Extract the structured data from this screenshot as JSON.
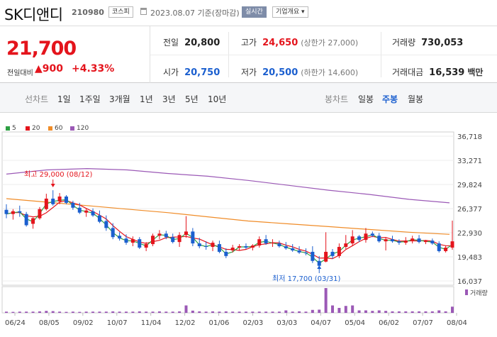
{
  "header": {
    "name": "SK디앤디",
    "code": "210980",
    "market": "코스피",
    "date": "2023.08.07 기준(장마감)",
    "realtime": "실시간",
    "company_info": "기업개요 ▾"
  },
  "quote": {
    "price": "21,700",
    "change_label": "전일대비",
    "change": "▲900",
    "change_pct": "+4.33%",
    "prev_close": {
      "label": "전일",
      "value": "20,800"
    },
    "open": {
      "label": "시가",
      "value": "20,750"
    },
    "high": {
      "label": "고가",
      "value": "24,650",
      "sub": "(상한가 27,000)"
    },
    "low": {
      "label": "저가",
      "value": "20,500",
      "sub": "(하한가 14,600)"
    },
    "volume": {
      "label": "거래량",
      "value": "730,053"
    },
    "turnover": {
      "label": "거래대금",
      "value": "16,539",
      "unit": "백만"
    }
  },
  "tabs": {
    "line_label": "선차트",
    "periods": [
      "1일",
      "1주일",
      "3개월",
      "1년",
      "3년",
      "5년",
      "10년"
    ],
    "candle_label": "봉차트",
    "candles": [
      "일봉",
      "주봉",
      "월봉"
    ],
    "active_candle": "주봉"
  },
  "legend": [
    {
      "label": "5",
      "color": "#2ea043"
    },
    {
      "label": "20",
      "color": "#e4141c"
    },
    {
      "label": "60",
      "color": "#f08c28"
    },
    {
      "label": "120",
      "color": "#9b59b6"
    }
  ],
  "chart_data": {
    "type": "candlestick",
    "y_ticks": [
      "36,718",
      "33,271",
      "29,824",
      "26,377",
      "22,930",
      "19,483",
      "16,037"
    ],
    "ylim": [
      16037,
      36718
    ],
    "x_ticks": [
      "06/24",
      "08/05",
      "09/02",
      "10/07",
      "11/04",
      "12/02",
      "01/06",
      "02/03",
      "03/03",
      "04/07",
      "05/04",
      "06/02",
      "07/07",
      "08/04"
    ],
    "annotations": {
      "high": "최고 29,000 (08/12)",
      "low": "최저 17,700 (03/31)"
    },
    "volume_label": "거래량",
    "candles": [
      [
        26200,
        27000,
        25000,
        25600
      ],
      [
        25600,
        26300,
        24800,
        26000
      ],
      [
        26000,
        26800,
        25200,
        25800
      ],
      [
        25600,
        25900,
        23800,
        24000
      ],
      [
        24200,
        25100,
        23500,
        25000
      ],
      [
        25000,
        26600,
        24800,
        26300
      ],
      [
        26300,
        28500,
        26100,
        27800
      ],
      [
        27800,
        29000,
        26800,
        27000
      ],
      [
        27400,
        28600,
        27000,
        28100
      ],
      [
        28100,
        28300,
        27000,
        27200
      ],
      [
        27200,
        27500,
        26200,
        26500
      ],
      [
        26500,
        27200,
        25600,
        25800
      ],
      [
        25800,
        26400,
        25200,
        26100
      ],
      [
        26000,
        26400,
        25200,
        25400
      ],
      [
        25400,
        26100,
        24300,
        24500
      ],
      [
        24600,
        25400,
        23200,
        23600
      ],
      [
        23600,
        24300,
        22000,
        22300
      ],
      [
        22500,
        23000,
        21800,
        22100
      ],
      [
        22100,
        22700,
        21200,
        21500
      ],
      [
        21500,
        22400,
        21000,
        22000
      ],
      [
        22000,
        22300,
        20600,
        20800
      ],
      [
        20800,
        21600,
        20300,
        21300
      ],
      [
        21300,
        22800,
        21000,
        22500
      ],
      [
        22500,
        23300,
        22000,
        22800
      ],
      [
        22800,
        23200,
        22000,
        22300
      ],
      [
        22300,
        22800,
        21400,
        21600
      ],
      [
        21600,
        23000,
        20900,
        22600
      ],
      [
        22600,
        25300,
        22200,
        23100
      ],
      [
        23100,
        23600,
        21000,
        21400
      ],
      [
        21400,
        22200,
        20700,
        21000
      ],
      [
        21000,
        21700,
        20500,
        20900
      ],
      [
        20900,
        21800,
        20300,
        21500
      ],
      [
        21300,
        21800,
        20000,
        20200
      ],
      [
        20200,
        20700,
        19300,
        19600
      ],
      [
        20400,
        21200,
        20100,
        20800
      ],
      [
        20800,
        21300,
        20400,
        21000
      ],
      [
        21000,
        21400,
        20600,
        20800
      ],
      [
        20800,
        21300,
        20400,
        21100
      ],
      [
        21100,
        22400,
        20800,
        22000
      ],
      [
        22000,
        22600,
        21200,
        21400
      ],
      [
        21400,
        22000,
        20900,
        21500
      ],
      [
        21400,
        21800,
        20800,
        21000
      ],
      [
        21000,
        21600,
        20500,
        20700
      ],
      [
        20700,
        21300,
        20200,
        20400
      ],
      [
        20400,
        21000,
        19900,
        20100
      ],
      [
        20100,
        20700,
        19700,
        20000
      ],
      [
        20200,
        21000,
        18600,
        18900
      ],
      [
        18900,
        19600,
        17700,
        18200
      ],
      [
        18800,
        23000,
        18700,
        20200
      ],
      [
        20200,
        20600,
        19200,
        19600
      ],
      [
        19600,
        21400,
        19300,
        20900
      ],
      [
        20900,
        22600,
        20600,
        21400
      ],
      [
        21400,
        23300,
        21000,
        22400
      ],
      [
        22400,
        22600,
        21600,
        21900
      ],
      [
        21900,
        23600,
        21500,
        22800
      ],
      [
        22800,
        23100,
        22300,
        22500
      ],
      [
        22500,
        22900,
        21500,
        21700
      ],
      [
        21700,
        22300,
        20400,
        22000
      ],
      [
        22000,
        22500,
        21500,
        21700
      ],
      [
        21700,
        22000,
        21200,
        21500
      ],
      [
        21500,
        22300,
        21200,
        21800
      ],
      [
        21800,
        22500,
        21400,
        22100
      ],
      [
        22100,
        22600,
        21400,
        21600
      ],
      [
        21600,
        21900,
        21300,
        21800
      ],
      [
        21800,
        22100,
        21200,
        21400
      ],
      [
        21400,
        21700,
        20100,
        20300
      ],
      [
        20300,
        21100,
        20100,
        20800
      ],
      [
        20800,
        24650,
        20500,
        21700
      ]
    ],
    "ma60": [
      27800,
      27300,
      26800,
      26300,
      25800,
      25200,
      24600,
      24200,
      23800,
      23400,
      23000,
      22700
    ],
    "ma120": [
      31300,
      31900,
      32100,
      31900,
      31400,
      31000,
      30400,
      29700,
      29000,
      28400,
      27700,
      27200
    ],
    "volume": [
      0.05,
      0.04,
      0.05,
      0.05,
      0.05,
      0.06,
      0.08,
      0.07,
      0.05,
      0.04,
      0.05,
      0.04,
      0.05,
      0.05,
      0.05,
      0.05,
      0.06,
      0.05,
      0.05,
      0.05,
      0.06,
      0.05,
      0.05,
      0.06,
      0.05,
      0.05,
      0.06,
      0.3,
      0.09,
      0.06,
      0.05,
      0.06,
      0.05,
      0.06,
      0.05,
      0.05,
      0.05,
      0.05,
      0.05,
      0.05,
      0.05,
      0.05,
      0.1,
      0.05,
      0.06,
      0.05,
      0.12,
      0.13,
      1.0,
      0.3,
      0.2,
      0.28,
      0.3,
      0.1,
      0.1,
      0.08,
      0.1,
      0.08,
      0.06,
      0.06,
      0.06,
      0.06,
      0.06,
      0.06,
      0.06,
      0.1,
      0.06,
      0.25
    ]
  }
}
